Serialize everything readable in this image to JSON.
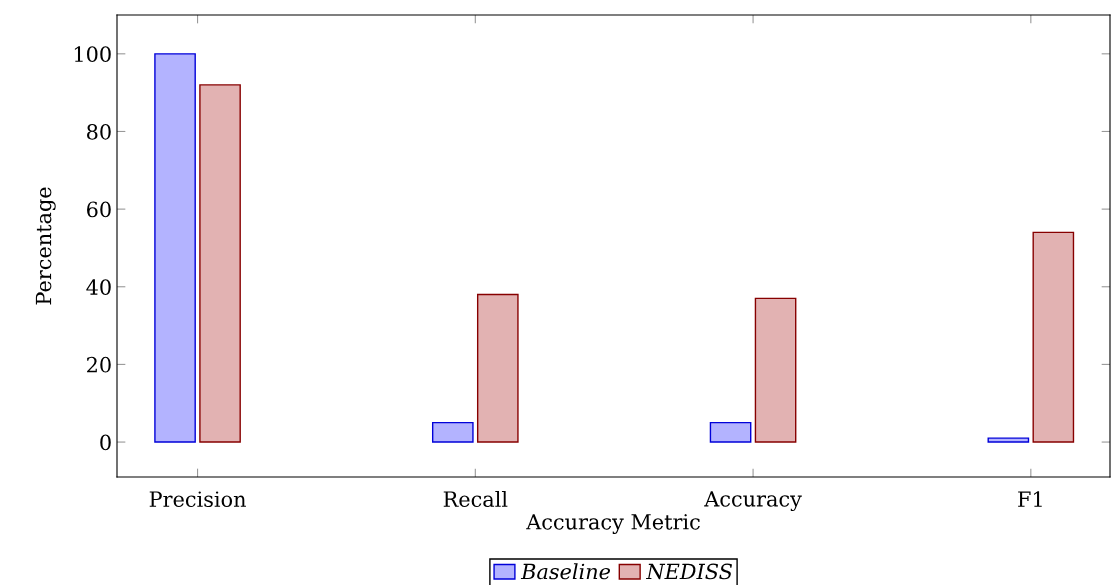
{
  "chart_data": {
    "type": "bar",
    "xlabel": "Accuracy Metric",
    "ylabel": "Percentage",
    "categories": [
      "Precision",
      "Recall",
      "Accuracy",
      "F1"
    ],
    "series": [
      {
        "name": "Baseline",
        "color": "#b3b3ff",
        "values": [
          100,
          5,
          5,
          1
        ]
      },
      {
        "name": "NEDISS",
        "color": "#e2b2b2",
        "values": [
          92,
          38,
          37,
          54
        ]
      }
    ],
    "ylim": [
      -9,
      110
    ],
    "yticks": [
      0,
      20,
      40,
      60,
      80,
      100
    ],
    "grid": false,
    "legend": "bottom"
  }
}
